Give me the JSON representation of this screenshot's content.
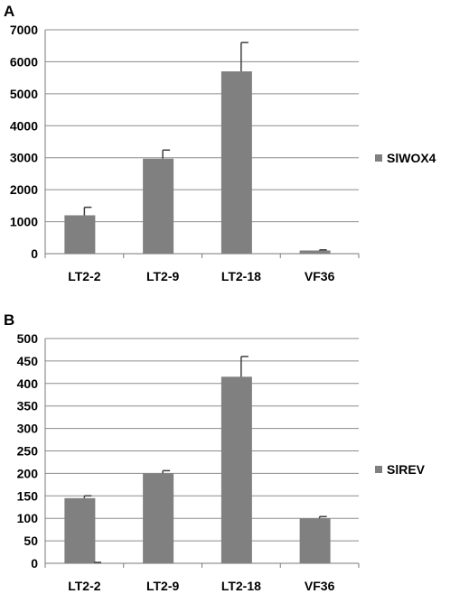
{
  "chart_data": [
    {
      "panel_label": "A",
      "type": "bar",
      "categories": [
        "LT2-2",
        "LT2-9",
        "LT2-18",
        "VF36"
      ],
      "series": [
        {
          "name": "SlWOX4",
          "values": [
            1200,
            2970,
            5700,
            100
          ],
          "errors": [
            250,
            270,
            900,
            20
          ],
          "color": "#808080"
        }
      ],
      "ylim": [
        0,
        7000
      ],
      "yticks": [
        "0",
        "1000",
        "2000",
        "3000",
        "4000",
        "5000",
        "6000",
        "7000"
      ],
      "grid": true,
      "legend": "right"
    },
    {
      "panel_label": "B",
      "type": "bar",
      "categories": [
        "LT2-2",
        "LT2-9",
        "LT2-18",
        "VF36"
      ],
      "series": [
        {
          "name": "SlREV",
          "values": [
            145,
            200,
            415,
            100
          ],
          "errors": [
            5,
            6,
            45,
            4
          ],
          "color": "#808080"
        }
      ],
      "ylim": [
        0,
        500
      ],
      "yticks": [
        "0",
        "50",
        "100",
        "150",
        "200",
        "250",
        "300",
        "350",
        "400",
        "450",
        "500"
      ],
      "grid": true,
      "legend": "right"
    }
  ]
}
